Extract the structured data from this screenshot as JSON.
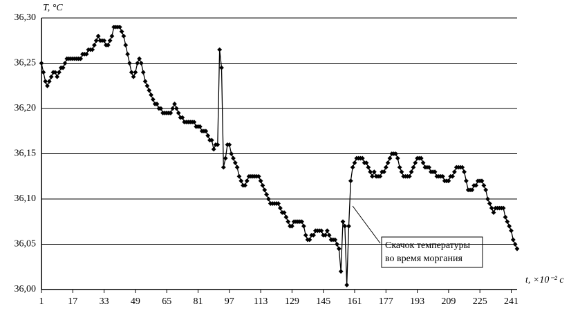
{
  "chart_data": {
    "type": "line",
    "y_label": "T, °C",
    "x_label": "t, ×10⁻² с",
    "annotation": [
      "Скачок температуры",
      "во время моргания"
    ],
    "color": "#000000",
    "grid": true,
    "xlim": [
      1,
      244
    ],
    "xticks": [
      1,
      17,
      33,
      49,
      65,
      81,
      97,
      113,
      129,
      145,
      161,
      177,
      193,
      209,
      225,
      241
    ],
    "ylim": [
      36.0,
      36.3
    ],
    "yticks": [
      {
        "value": 36.0,
        "label": "36,00"
      },
      {
        "value": 36.05,
        "label": "36,05"
      },
      {
        "value": 36.1,
        "label": "36,10"
      },
      {
        "value": 36.15,
        "label": "36,15"
      },
      {
        "value": 36.2,
        "label": "36,20"
      },
      {
        "value": 36.25,
        "label": "36,25"
      },
      {
        "value": 36.3,
        "label": "36,30"
      }
    ],
    "x": [
      1,
      2,
      3,
      4,
      5,
      6,
      7,
      8,
      9,
      10,
      11,
      12,
      13,
      14,
      15,
      16,
      17,
      18,
      19,
      20,
      21,
      22,
      23,
      24,
      25,
      26,
      27,
      28,
      29,
      30,
      31,
      32,
      33,
      34,
      35,
      36,
      37,
      38,
      39,
      40,
      41,
      42,
      43,
      44,
      45,
      46,
      47,
      48,
      49,
      50,
      51,
      52,
      53,
      54,
      55,
      56,
      57,
      58,
      59,
      60,
      61,
      62,
      63,
      64,
      65,
      66,
      67,
      68,
      69,
      70,
      71,
      72,
      73,
      74,
      75,
      76,
      77,
      78,
      79,
      80,
      81,
      82,
      83,
      84,
      85,
      86,
      87,
      88,
      89,
      90,
      91,
      92,
      93,
      94,
      95,
      96,
      97,
      98,
      99,
      100,
      101,
      102,
      103,
      104,
      105,
      106,
      107,
      108,
      109,
      110,
      111,
      112,
      113,
      114,
      115,
      116,
      117,
      118,
      119,
      120,
      121,
      122,
      123,
      124,
      125,
      126,
      127,
      128,
      129,
      130,
      131,
      132,
      133,
      134,
      135,
      136,
      137,
      138,
      139,
      140,
      141,
      142,
      143,
      144,
      145,
      146,
      147,
      148,
      149,
      150,
      151,
      152,
      153,
      154,
      155,
      156,
      157,
      158,
      159,
      160,
      161,
      162,
      163,
      164,
      165,
      166,
      167,
      168,
      169,
      170,
      171,
      172,
      173,
      174,
      175,
      176,
      177,
      178,
      179,
      180,
      181,
      182,
      183,
      184,
      185,
      186,
      187,
      188,
      189,
      190,
      191,
      192,
      193,
      194,
      195,
      196,
      197,
      198,
      199,
      200,
      201,
      202,
      203,
      204,
      205,
      206,
      207,
      208,
      209,
      210,
      211,
      212,
      213,
      214,
      215,
      216,
      217,
      218,
      219,
      220,
      221,
      222,
      223,
      224,
      225,
      226,
      227,
      228,
      229,
      230,
      231,
      232,
      233,
      234,
      235,
      236,
      237,
      238,
      239,
      240,
      241,
      242,
      243,
      244
    ],
    "values": [
      36.25,
      36.24,
      36.23,
      36.225,
      36.23,
      36.235,
      36.24,
      36.24,
      36.235,
      36.24,
      36.245,
      36.245,
      36.25,
      36.255,
      36.255,
      36.255,
      36.255,
      36.255,
      36.255,
      36.255,
      36.255,
      36.26,
      36.26,
      36.26,
      36.265,
      36.265,
      36.265,
      36.27,
      36.275,
      36.28,
      36.275,
      36.275,
      36.275,
      36.27,
      36.27,
      36.275,
      36.28,
      36.29,
      36.29,
      36.29,
      36.29,
      36.285,
      36.28,
      36.27,
      36.26,
      36.25,
      36.24,
      36.235,
      36.24,
      36.25,
      36.255,
      36.25,
      36.24,
      36.23,
      36.225,
      36.22,
      36.215,
      36.21,
      36.205,
      36.205,
      36.2,
      36.2,
      36.195,
      36.195,
      36.195,
      36.195,
      36.195,
      36.2,
      36.205,
      36.2,
      36.195,
      36.19,
      36.19,
      36.185,
      36.185,
      36.185,
      36.185,
      36.185,
      36.185,
      36.18,
      36.18,
      36.18,
      36.175,
      36.175,
      36.175,
      36.17,
      36.165,
      36.165,
      36.155,
      36.16,
      36.16,
      36.265,
      36.245,
      36.135,
      36.145,
      36.16,
      36.16,
      36.15,
      36.145,
      36.14,
      36.135,
      36.125,
      36.12,
      36.115,
      36.115,
      36.12,
      36.125,
      36.125,
      36.125,
      36.125,
      36.125,
      36.125,
      36.12,
      36.115,
      36.11,
      36.105,
      36.1,
      36.095,
      36.095,
      36.095,
      36.095,
      36.095,
      36.09,
      36.085,
      36.085,
      36.08,
      36.075,
      36.07,
      36.07,
      36.075,
      36.075,
      36.075,
      36.075,
      36.075,
      36.07,
      36.06,
      36.055,
      36.055,
      36.06,
      36.06,
      36.065,
      36.065,
      36.065,
      36.065,
      36.06,
      36.06,
      36.065,
      36.06,
      36.055,
      36.055,
      36.055,
      36.05,
      36.045,
      36.02,
      36.075,
      36.07,
      36.005,
      36.07,
      36.12,
      36.135,
      36.14,
      36.145,
      36.145,
      36.145,
      36.145,
      36.14,
      36.14,
      36.135,
      36.13,
      36.125,
      36.13,
      36.125,
      36.125,
      36.125,
      36.13,
      36.13,
      36.135,
      36.14,
      36.145,
      36.15,
      36.15,
      36.15,
      36.145,
      36.135,
      36.13,
      36.125,
      36.125,
      36.125,
      36.125,
      36.13,
      36.135,
      36.14,
      36.145,
      36.145,
      36.145,
      36.14,
      36.135,
      36.135,
      36.135,
      36.13,
      36.13,
      36.13,
      36.125,
      36.125,
      36.125,
      36.125,
      36.12,
      36.12,
      36.12,
      36.125,
      36.125,
      36.13,
      36.135,
      36.135,
      36.135,
      36.135,
      36.13,
      36.12,
      36.11,
      36.11,
      36.11,
      36.115,
      36.115,
      36.12,
      36.12,
      36.12,
      36.115,
      36.11,
      36.1,
      36.095,
      36.09,
      36.085,
      36.09,
      36.09,
      36.09,
      36.09,
      36.09,
      36.08,
      36.075,
      36.07,
      36.065,
      36.055,
      36.05,
      36.045
    ]
  }
}
